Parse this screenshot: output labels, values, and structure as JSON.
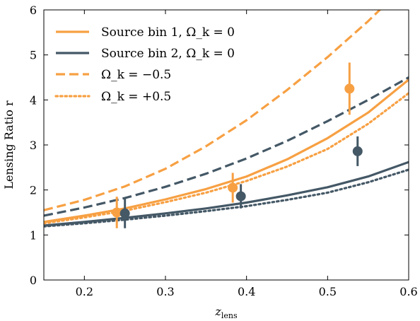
{
  "chart_data": {
    "type": "line",
    "xlabel": "z",
    "xlabel_sub": "lens",
    "ylabel": "Lensing Ratio r",
    "xlim": [
      0.15,
      0.6
    ],
    "ylim": [
      0,
      6
    ],
    "xticks": [
      0.2,
      0.3,
      0.4,
      0.5,
      0.6
    ],
    "xtick_labels": [
      "0.2",
      "0.3",
      "0.4",
      "0.5",
      "0.6"
    ],
    "yticks": [
      0,
      1,
      2,
      3,
      4,
      5,
      6
    ],
    "ytick_labels": [
      "0",
      "1",
      "2",
      "3",
      "4",
      "5",
      "6"
    ],
    "grid": false,
    "legend_position": "top-left",
    "series": [
      {
        "name": "Source bin 1, Ω_k = 0",
        "style": "solid",
        "color": "#f7a043",
        "x": [
          0.15,
          0.2,
          0.25,
          0.3,
          0.35,
          0.4,
          0.45,
          0.5,
          0.55,
          0.6
        ],
        "y": [
          1.29,
          1.43,
          1.59,
          1.79,
          2.02,
          2.3,
          2.68,
          3.15,
          3.72,
          4.45
        ]
      },
      {
        "name": "Source bin 2, Ω_k = 0",
        "style": "solid",
        "color": "#445866",
        "x": [
          0.15,
          0.2,
          0.25,
          0.3,
          0.35,
          0.4,
          0.45,
          0.5,
          0.55,
          0.6
        ],
        "y": [
          1.21,
          1.29,
          1.38,
          1.48,
          1.59,
          1.72,
          1.88,
          2.06,
          2.3,
          2.62
        ]
      },
      {
        "name": "Ω_k = −0.5",
        "style": "dashed",
        "color": "#f7a043",
        "x": [
          0.15,
          0.2,
          0.25,
          0.3,
          0.35,
          0.4,
          0.45,
          0.5,
          0.55,
          0.57
        ],
        "y": [
          1.55,
          1.78,
          2.08,
          2.47,
          2.97,
          3.55,
          4.22,
          4.95,
          5.75,
          6.1
        ]
      },
      {
        "name": "",
        "style": "dashed",
        "color": "#445866",
        "x": [
          0.15,
          0.2,
          0.25,
          0.3,
          0.35,
          0.4,
          0.45,
          0.5,
          0.55,
          0.6
        ],
        "y": [
          1.43,
          1.61,
          1.82,
          2.07,
          2.36,
          2.7,
          3.09,
          3.53,
          4.0,
          4.5
        ]
      },
      {
        "name": "Ω_k = +0.5",
        "style": "dotted",
        "color": "#f7a043",
        "x": [
          0.15,
          0.2,
          0.25,
          0.3,
          0.35,
          0.4,
          0.45,
          0.5,
          0.55,
          0.6
        ],
        "y": [
          1.26,
          1.39,
          1.54,
          1.73,
          1.94,
          2.2,
          2.52,
          2.91,
          3.47,
          4.15
        ]
      },
      {
        "name": "",
        "style": "dotted",
        "color": "#445866",
        "x": [
          0.15,
          0.2,
          0.25,
          0.3,
          0.35,
          0.4,
          0.45,
          0.5,
          0.55,
          0.6
        ],
        "y": [
          1.19,
          1.26,
          1.34,
          1.43,
          1.53,
          1.64,
          1.78,
          1.94,
          2.17,
          2.45
        ]
      }
    ],
    "points": [
      {
        "series": "bin1",
        "color": "#f7a043",
        "x": 0.24,
        "y": 1.5,
        "yerr_low": 0.35,
        "yerr_high": 0.35
      },
      {
        "series": "bin2",
        "color": "#445866",
        "x": 0.25,
        "y": 1.48,
        "yerr_low": 0.33,
        "yerr_high": 0.33
      },
      {
        "series": "bin1",
        "color": "#f7a043",
        "x": 0.383,
        "y": 2.05,
        "yerr_low": 0.33,
        "yerr_high": 0.33
      },
      {
        "series": "bin2",
        "color": "#445866",
        "x": 0.393,
        "y": 1.86,
        "yerr_low": 0.27,
        "yerr_high": 0.27
      },
      {
        "series": "bin1",
        "color": "#f7a043",
        "x": 0.527,
        "y": 4.25,
        "yerr_low": 0.58,
        "yerr_high": 0.58
      },
      {
        "series": "bin2",
        "color": "#445866",
        "x": 0.537,
        "y": 2.86,
        "yerr_low": 0.33,
        "yerr_high": 0.33
      }
    ],
    "legend": [
      {
        "label": "Source bin 1, Ω_k = 0",
        "style": "solid",
        "color": "#f7a043"
      },
      {
        "label": "Source bin 2, Ω_k = 0",
        "style": "solid",
        "color": "#445866"
      },
      {
        "label": "Ω_k = −0.5",
        "style": "dashed",
        "color": "#f7a043"
      },
      {
        "label": "Ω_k = +0.5",
        "style": "dotted",
        "color": "#f7a043"
      }
    ]
  }
}
